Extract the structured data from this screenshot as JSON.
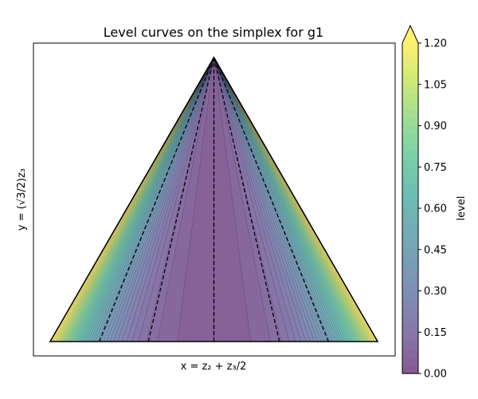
{
  "chart_data": {
    "type": "contour",
    "title": "Level curves on the simplex for g1",
    "xlabel": "x = z₂ + z₃/2",
    "ylabel": "y = (√3/2)z₃",
    "colorbar": {
      "label": "level",
      "ticks": [
        "0.00",
        "0.15",
        "0.30",
        "0.45",
        "0.60",
        "0.75",
        "0.90",
        "1.05",
        "1.20"
      ],
      "range": [
        0.0,
        1.2
      ],
      "extend": "max",
      "colormap": "viridis",
      "alpha": 0.65
    },
    "simplex_vertices": [
      [
        0,
        0
      ],
      [
        1,
        0
      ],
      [
        0.5,
        0.866
      ]
    ],
    "dashed_lines_bottom_x": [
      0.15,
      0.3,
      0.5,
      0.7,
      0.85
    ],
    "background": "#ffffff",
    "edge_color": "#000000"
  }
}
